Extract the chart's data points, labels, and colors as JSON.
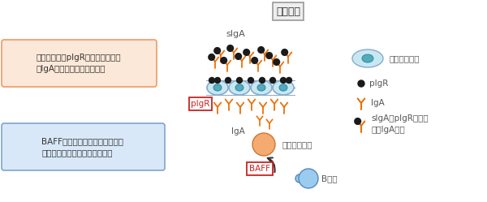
{
  "bg_color": "#ffffff",
  "orange": "#e8720c",
  "dark": "#1a1a1a",
  "cell_face": "#c8e8f0",
  "cell_edge": "#88aacc",
  "cell_inner_face": "#55aabb",
  "cell_inner_edge": "#3388aa",
  "producer_face": "#f5aa70",
  "producer_edge": "#cc7733",
  "bcell_face": "#99ccee",
  "bcell_edge": "#5588bb",
  "title_text": "腸管内部",
  "siga_label": "sIgA",
  "iga_label": "IgA",
  "pigr_label": "pIgR",
  "baff_label": "BAFF",
  "producer_label": "抗体産生細胞",
  "bcell_label": "B細胞",
  "left_top_text": "運び屋分子（pIgR）を増やすこと\nでIgA抗体の輸送力を上げる",
  "left_top_face": "#fce8d8",
  "left_top_edge": "#f0a070",
  "left_bot_text": "BAFFを介して、抗体産生細胞を\n活性化し、抗体産生力を増やす",
  "left_bot_face": "#d8e8f8",
  "left_bot_edge": "#88aad0",
  "leg_cell_label": "腸管上皮細胞",
  "leg_pigr_label": "pIgR",
  "leg_iga_label": "IgA",
  "leg_siga_label": "sIgA：pIgRと結合\nしたIgA抗体",
  "red_box_color": "#cc2222"
}
